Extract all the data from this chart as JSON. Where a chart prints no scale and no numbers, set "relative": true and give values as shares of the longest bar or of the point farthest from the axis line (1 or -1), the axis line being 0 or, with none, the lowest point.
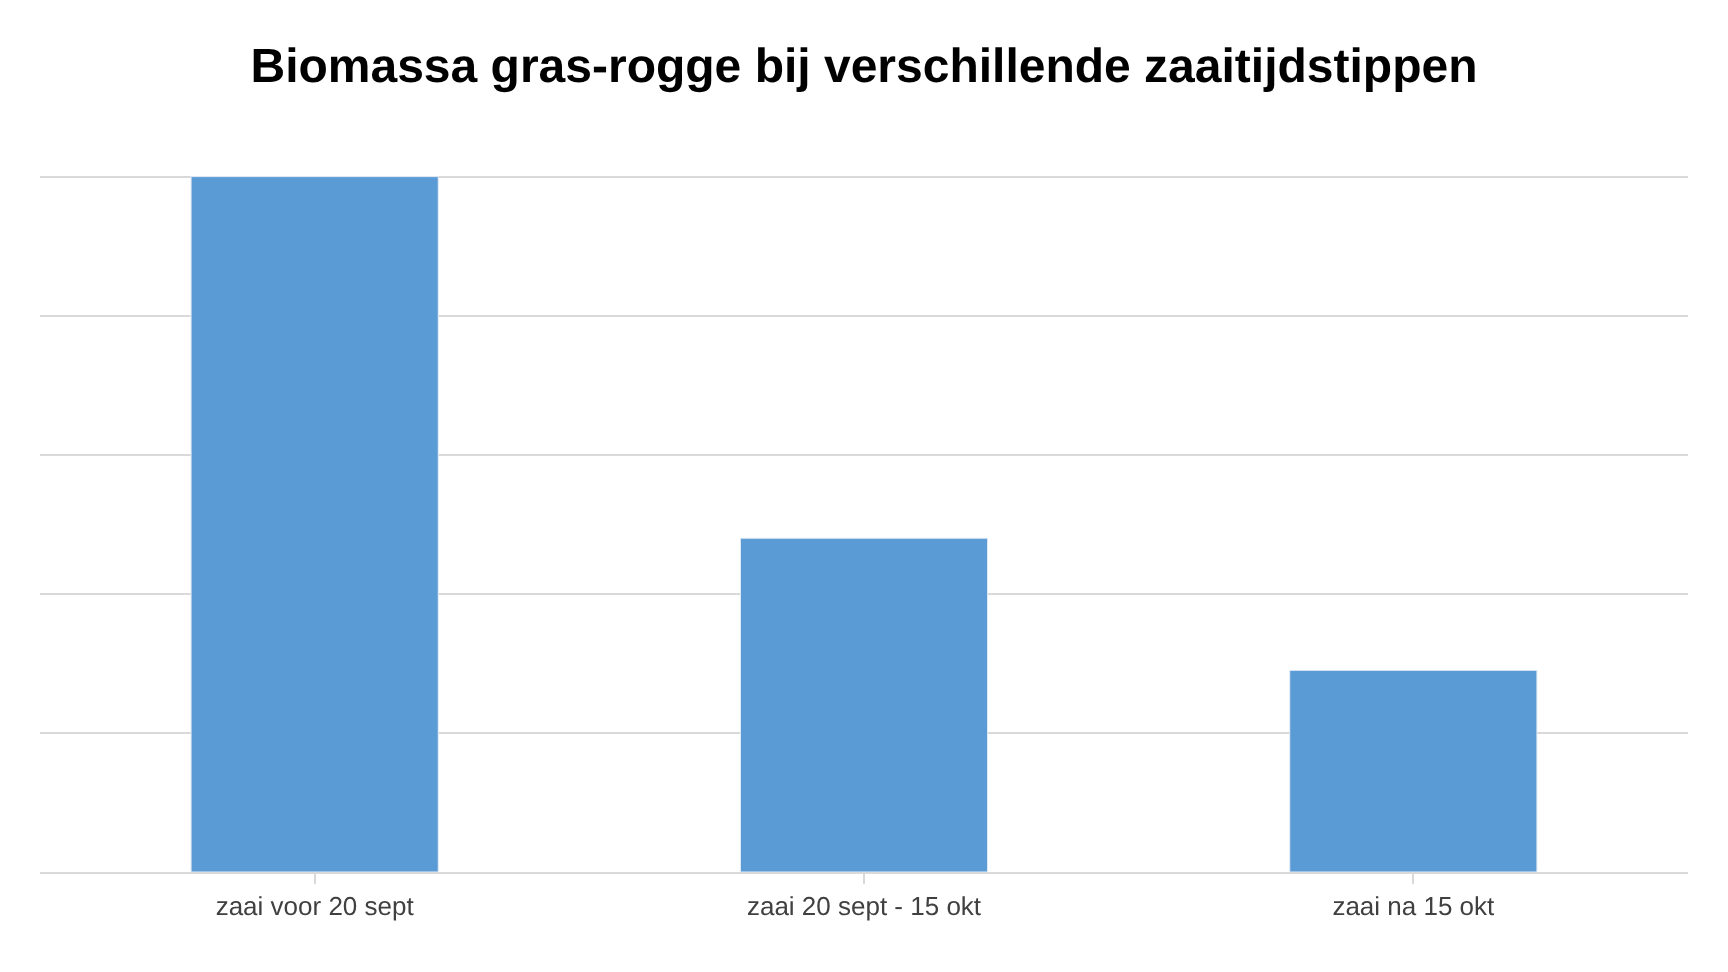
{
  "chart_data": {
    "type": "bar",
    "title": "Biomassa gras-rogge bij verschillende zaaitijdstippen",
    "categories": [
      "zaai voor 20 sept",
      "zaai 20 sept - 15 okt",
      "zaai na 15 okt"
    ],
    "values": [
      1,
      0.48,
      0.29
    ],
    "color": "#5b9bd5",
    "relative": true,
    "grid": "y",
    "legend": false
  }
}
